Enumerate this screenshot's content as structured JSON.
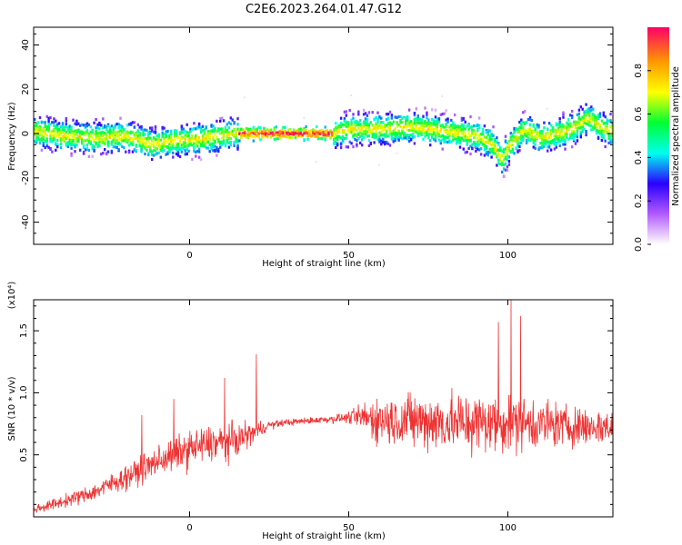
{
  "title": "C2E6.2023.264.01.47.G12",
  "colors": {
    "snr_line": "#ee3333",
    "axis": "#000000",
    "background": "#ffffff"
  },
  "chart_data": [
    {
      "type": "heatmap",
      "xlabel": "Height of straight line (km)",
      "ylabel": "Frequency (Hz)",
      "xlim": [
        -49,
        133
      ],
      "ylim": [
        -50,
        48
      ],
      "x_ticks": [
        0,
        50,
        100
      ],
      "y_ticks": [
        -40,
        -20,
        0,
        20,
        40
      ],
      "grid": false,
      "colorbar": {
        "label": "Normalized spectral amplitude",
        "range": [
          0,
          1
        ],
        "ticks": [
          "0.0",
          "0.2",
          "0.4",
          "0.6",
          "0.8"
        ],
        "colormap": [
          "#ffffff",
          "#b25aff",
          "#2a00ff",
          "#00ffee",
          "#00ff33",
          "#ffff00",
          "#ff9900",
          "#ff0066"
        ]
      },
      "ridge": {
        "x": [
          -49,
          -40,
          -30,
          -20,
          -12,
          -5,
          0,
          5,
          15,
          25,
          35,
          45,
          50,
          60,
          70,
          80,
          90,
          95,
          98,
          100,
          105,
          110,
          115,
          120,
          125,
          130,
          133
        ],
        "freq": [
          1,
          -1,
          -2,
          -1,
          -5,
          -3,
          -3,
          -2,
          0,
          0,
          0,
          0,
          2,
          2,
          3,
          1,
          -1,
          -5,
          -12,
          -6,
          2,
          -2,
          0,
          2,
          7,
          2,
          1
        ]
      }
    },
    {
      "type": "line",
      "xlabel": "Height of straight line (km)",
      "ylabel": "SNR (10 * v/v)",
      "scale_label": "(x10⁴)",
      "xlim": [
        -49,
        133
      ],
      "ylim": [
        0,
        1.75
      ],
      "x_ticks": [
        0,
        50,
        100
      ],
      "y_ticks": [
        0.5,
        1.0,
        1.5
      ],
      "y_tick_labels": [
        "0.5",
        "1.0",
        "1.5"
      ],
      "grid": false,
      "envelope": {
        "x": [
          -49,
          -40,
          -30,
          -20,
          -15,
          -10,
          -5,
          0,
          5,
          10,
          15,
          20,
          25,
          30,
          40,
          50,
          55,
          60,
          70,
          80,
          90,
          100,
          110,
          120,
          133
        ],
        "mean": [
          0.06,
          0.12,
          0.2,
          0.32,
          0.38,
          0.45,
          0.5,
          0.55,
          0.58,
          0.6,
          0.62,
          0.68,
          0.74,
          0.76,
          0.78,
          0.8,
          0.8,
          0.78,
          0.78,
          0.76,
          0.76,
          0.76,
          0.75,
          0.73,
          0.72
        ],
        "spread": [
          0.05,
          0.07,
          0.1,
          0.14,
          0.16,
          0.18,
          0.2,
          0.22,
          0.22,
          0.22,
          0.2,
          0.12,
          0.05,
          0.04,
          0.04,
          0.06,
          0.2,
          0.28,
          0.32,
          0.36,
          0.36,
          0.34,
          0.3,
          0.24,
          0.2
        ]
      },
      "peaks": [
        {
          "x": -15,
          "y": 0.82
        },
        {
          "x": -5,
          "y": 0.95
        },
        {
          "x": 11,
          "y": 1.12
        },
        {
          "x": 21,
          "y": 1.31
        },
        {
          "x": 97,
          "y": 1.57
        },
        {
          "x": 101,
          "y": 1.75
        },
        {
          "x": 104,
          "y": 1.62
        }
      ]
    }
  ]
}
